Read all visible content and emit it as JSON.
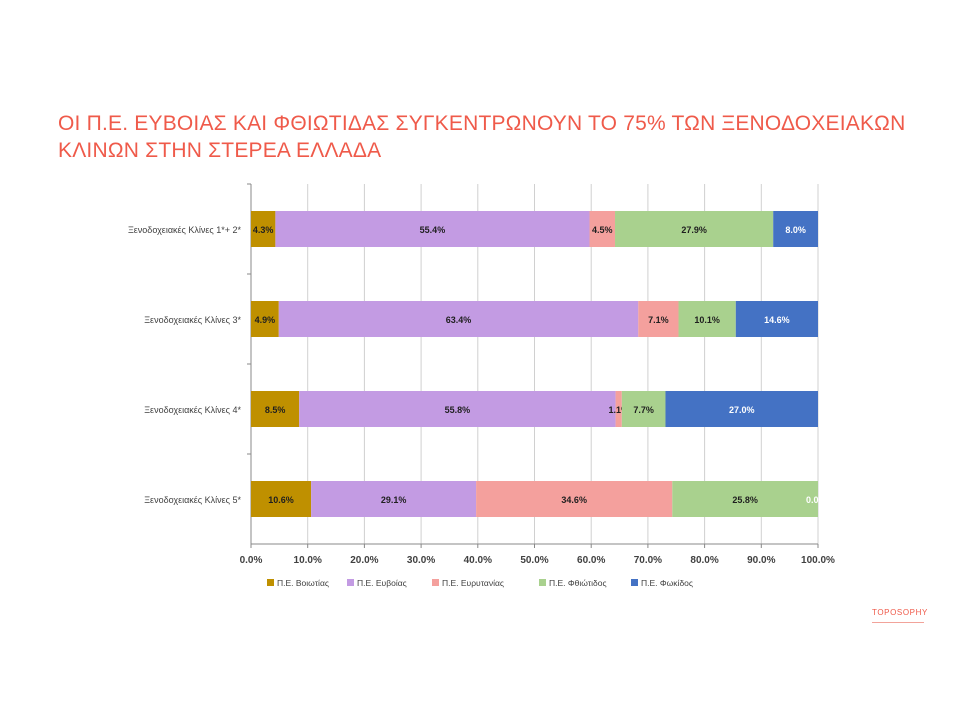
{
  "slide": {
    "title_line1": "ΟΙ Π.Ε. ΕΥΒΟΙΑΣ ΚΑΙ ΦΘΙΩΤΙΔΑΣ ΣΥΓΚΕΝΤΡΩΝΟΥΝ ΤΟ 75% ΤΩΝ ΞΕΝΟΔΟΧΕΙΑΚΩΝ",
    "title_line2": "ΚΛΙΝΩΝ ΣΤΗΝ ΣΤΕΡΕΑ ΕΛΛΑΔΑ",
    "logo": "TOPOSOPHY",
    "title_color": "#ef5a4a"
  },
  "chart_data": {
    "type": "bar",
    "orientation": "horizontal",
    "stacked": true,
    "categories": [
      "Ξενοδοχειακές Κλίνες 1*+ 2*",
      "Ξενοδοχειακές Κλίνες 3*",
      "Ξενοδοχειακές Κλίνες 4*",
      "Ξενοδοχειακές Κλίνες 5*"
    ],
    "series": [
      {
        "name": "Π.Ε. Βοιωτίας",
        "color": "#bf9000",
        "values": [
          4.3,
          4.9,
          8.5,
          10.6
        ],
        "labels": [
          "4.3%",
          "4.9%",
          "8.5%",
          "10.6%"
        ]
      },
      {
        "name": "Π.Ε. Ευβοίας",
        "color": "#c39be3",
        "values": [
          55.4,
          63.4,
          55.8,
          29.1
        ],
        "labels": [
          "55.4%",
          "63.4%",
          "55.8%",
          "29.1%"
        ]
      },
      {
        "name": "Π.Ε. Ευρυτανίας",
        "color": "#f4a09d",
        "values": [
          4.5,
          7.1,
          1.1,
          34.6
        ],
        "labels": [
          "4.5%",
          "7.1%",
          "1.1%",
          "34.6%"
        ]
      },
      {
        "name": "Π.Ε. Φθιώτιδος",
        "color": "#a9d18e",
        "values": [
          27.9,
          10.1,
          7.7,
          25.8
        ],
        "labels": [
          "27.9%",
          "10.1%",
          "7.7%",
          "25.8%"
        ]
      },
      {
        "name": "Π.Ε. Φωκίδος",
        "color": "#4472c4",
        "values": [
          8.0,
          14.6,
          27.0,
          0.0
        ],
        "labels": [
          "8.0%",
          "14.6%",
          "27.0%",
          "0.0"
        ]
      }
    ],
    "xlim": [
      0,
      100
    ],
    "xticks": [
      "0.0%",
      "10.0%",
      "20.0%",
      "30.0%",
      "40.0%",
      "50.0%",
      "60.0%",
      "70.0%",
      "80.0%",
      "90.0%",
      "100.0%"
    ],
    "grid": true,
    "legend_position": "bottom"
  }
}
